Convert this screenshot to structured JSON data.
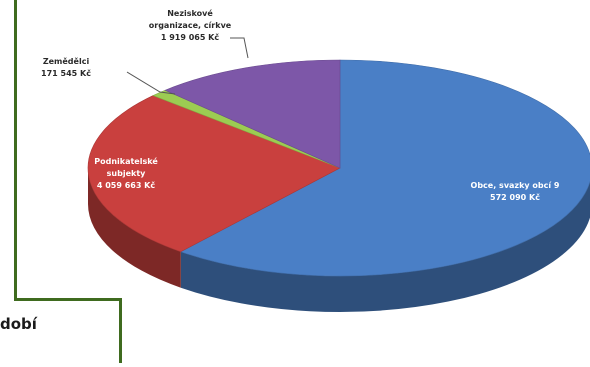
{
  "chart_data": {
    "type": "pie",
    "style": "3d-pie",
    "title": "",
    "slices": [
      {
        "name": "Obce, svazky obcí",
        "value": 9572090,
        "value_label": "9 572 090 Kč",
        "color": "#4a7fc6"
      },
      {
        "name": "Podnikatelské subjekty",
        "value": 4059663,
        "value_label": "4 059 663 Kč",
        "color": "#c9403e"
      },
      {
        "name": "Zemědělci",
        "value": 171545,
        "value_label": "171 545 Kč",
        "color": "#9ccc52"
      },
      {
        "name": "Neziskové organizace, církve",
        "value": 1919065,
        "value_label": "1 919 065 Kč",
        "color": "#7d57a8"
      }
    ],
    "labels": {
      "obce": [
        "Obce, svazky obcí  9",
        "572 090 Kč"
      ],
      "podnik": [
        "Podnikatelské",
        "subjekty",
        "4 059 663 Kč"
      ],
      "zemed": [
        "Zemědělci",
        "171 545 Kč"
      ],
      "nezisk": [
        "Neziskové",
        "organizace, církve",
        "1 919 065 Kč"
      ]
    },
    "label_colors": {
      "inside": "#ffffff",
      "outside": "#2a2a2a"
    }
  },
  "caption": {
    "text": "dobí"
  }
}
